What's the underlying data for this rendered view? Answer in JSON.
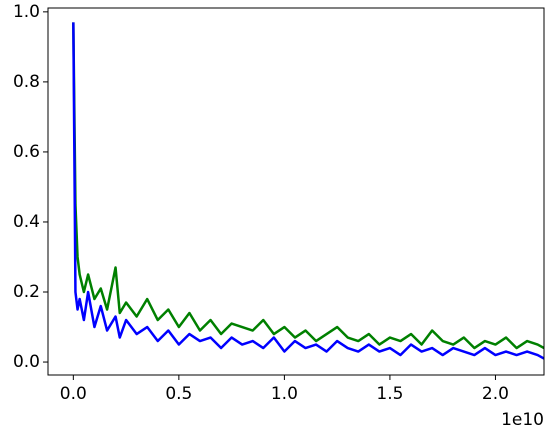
{
  "chart_data": {
    "type": "line",
    "x": [
      0,
      0.01,
      0.02,
      0.03,
      0.05,
      0.07,
      0.1,
      0.13,
      0.16,
      0.2,
      0.22,
      0.25,
      0.3,
      0.35,
      0.4,
      0.45,
      0.5,
      0.55,
      0.6,
      0.65,
      0.7,
      0.75,
      0.8,
      0.85,
      0.9,
      0.95,
      1.0,
      1.05,
      1.1,
      1.15,
      1.2,
      1.25,
      1.3,
      1.35,
      1.4,
      1.45,
      1.5,
      1.55,
      1.6,
      1.65,
      1.7,
      1.75,
      1.8,
      1.85,
      1.9,
      1.95,
      2.0,
      2.05,
      2.1,
      2.15,
      2.2,
      2.23
    ],
    "series": [
      {
        "color": "#008000",
        "values": [
          0.97,
          0.45,
          0.3,
          0.25,
          0.2,
          0.25,
          0.18,
          0.21,
          0.15,
          0.27,
          0.14,
          0.17,
          0.13,
          0.18,
          0.12,
          0.15,
          0.1,
          0.14,
          0.09,
          0.12,
          0.08,
          0.11,
          0.1,
          0.09,
          0.12,
          0.08,
          0.1,
          0.07,
          0.09,
          0.06,
          0.08,
          0.1,
          0.07,
          0.06,
          0.08,
          0.05,
          0.07,
          0.06,
          0.08,
          0.05,
          0.09,
          0.06,
          0.05,
          0.07,
          0.04,
          0.06,
          0.05,
          0.07,
          0.04,
          0.06,
          0.05,
          0.04
        ]
      },
      {
        "color": "#0000ff",
        "values": [
          0.97,
          0.2,
          0.15,
          0.18,
          0.12,
          0.2,
          0.1,
          0.16,
          0.09,
          0.13,
          0.07,
          0.12,
          0.08,
          0.1,
          0.06,
          0.09,
          0.05,
          0.08,
          0.06,
          0.07,
          0.04,
          0.07,
          0.05,
          0.06,
          0.04,
          0.07,
          0.03,
          0.06,
          0.04,
          0.05,
          0.03,
          0.06,
          0.04,
          0.03,
          0.05,
          0.03,
          0.04,
          0.02,
          0.05,
          0.03,
          0.04,
          0.02,
          0.04,
          0.03,
          0.02,
          0.04,
          0.02,
          0.03,
          0.02,
          0.03,
          0.02,
          0.01
        ]
      }
    ],
    "xlim": [
      -0.12,
      2.23
    ],
    "ylim": [
      -0.037,
      1.011
    ],
    "xticks": [
      {
        "value": 0,
        "label": "0.0"
      },
      0.5,
      {
        "value": 1,
        "label": "1.0"
      },
      1.5,
      {
        "value": 2,
        "label": "2.0"
      }
    ],
    "yticks": [
      {
        "value": 0,
        "label": "0.0"
      },
      0.2,
      0.4,
      0.6,
      0.8,
      {
        "value": 1,
        "label": "1.0"
      }
    ],
    "x_offset_label": "1e10"
  }
}
